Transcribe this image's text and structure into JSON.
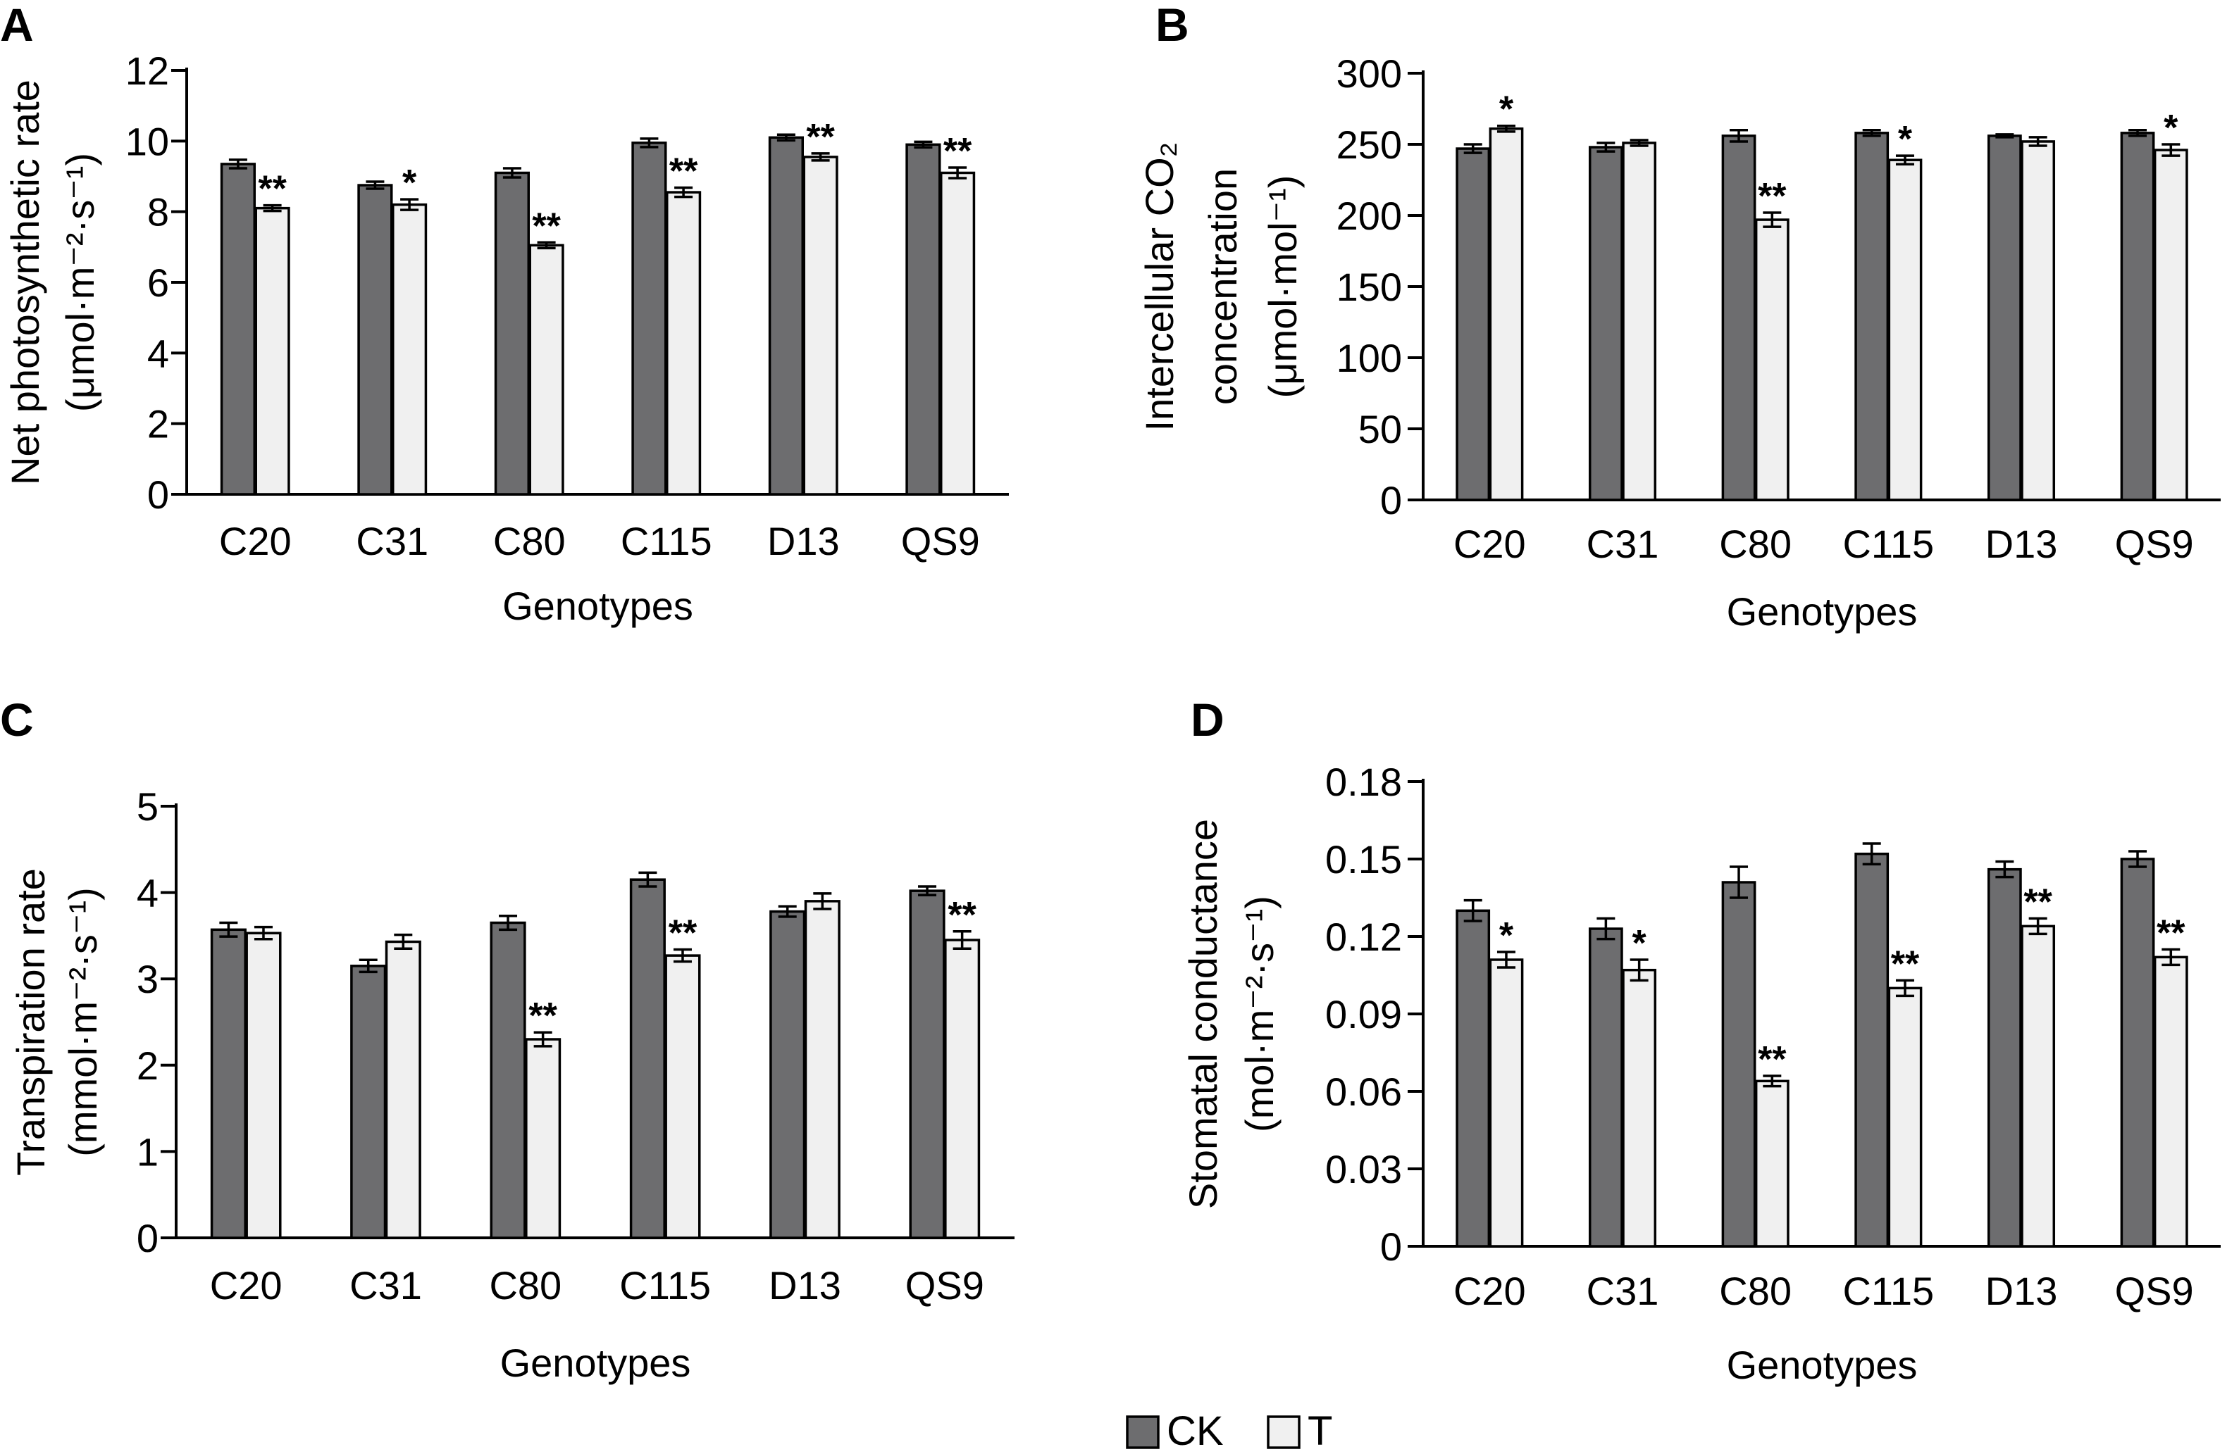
{
  "colors": {
    "ck": "#6d6d6f",
    "t": "#f0f0f0",
    "stroke": "#000000"
  },
  "legend": {
    "items": [
      {
        "label": "CK",
        "color": "#6d6d6f"
      },
      {
        "label": "T",
        "color": "#f0f0f0"
      }
    ]
  },
  "chart_data": [
    {
      "panel": "A",
      "type": "bar",
      "xlabel": "Genotypes",
      "ylabel_lines": [
        "Net photosynthetic rate",
        "(μmol·m⁻²·s⁻¹)"
      ],
      "ylim": [
        0,
        12
      ],
      "yticks": [
        0,
        2,
        4,
        6,
        8,
        10,
        12
      ],
      "ytick_labels": [
        "0",
        "2",
        "4",
        "6",
        "8",
        "10",
        "12"
      ],
      "categories": [
        "C20",
        "C31",
        "C80",
        "C115",
        "D13",
        "QS9"
      ],
      "series": [
        {
          "name": "CK",
          "values": [
            9.35,
            8.75,
            9.1,
            9.95,
            10.1,
            9.9
          ],
          "errors": [
            0.12,
            0.1,
            0.13,
            0.12,
            0.08,
            0.08
          ]
        },
        {
          "name": "T",
          "values": [
            8.1,
            8.2,
            7.05,
            8.55,
            9.55,
            9.1
          ],
          "errors": [
            0.08,
            0.15,
            0.08,
            0.13,
            0.1,
            0.15
          ]
        }
      ],
      "significance": [
        "**",
        "*",
        "**",
        "**",
        "**",
        "**"
      ]
    },
    {
      "panel": "B",
      "type": "bar",
      "xlabel": "Genotypes",
      "ylabel_lines": [
        "Intercellular CO₂",
        "concentration",
        "(μmol·mol⁻¹)"
      ],
      "ylim": [
        0,
        300
      ],
      "yticks": [
        0,
        50,
        100,
        150,
        200,
        250,
        300
      ],
      "ytick_labels": [
        "0",
        "50",
        "100",
        "150",
        "200",
        "250",
        "300"
      ],
      "categories": [
        "C20",
        "C31",
        "C80",
        "C115",
        "D13",
        "QS9"
      ],
      "series": [
        {
          "name": "CK",
          "values": [
            247,
            248,
            256,
            258,
            256,
            258
          ],
          "errors": [
            3,
            3,
            4,
            2,
            1,
            2
          ]
        },
        {
          "name": "T",
          "values": [
            261,
            251,
            197,
            239,
            252,
            246
          ],
          "errors": [
            2,
            2,
            5,
            3,
            3,
            4
          ]
        }
      ],
      "significance": [
        "*",
        "",
        "**",
        "*",
        "",
        "*"
      ]
    },
    {
      "panel": "C",
      "type": "bar",
      "xlabel": "Genotypes",
      "ylabel_lines": [
        "Transpiration rate",
        "(mmol·m⁻²·s⁻¹)"
      ],
      "ylim": [
        0,
        5
      ],
      "yticks": [
        0,
        1,
        2,
        3,
        4,
        5
      ],
      "ytick_labels": [
        "0",
        "1",
        "2",
        "3",
        "4",
        "5"
      ],
      "categories": [
        "C20",
        "C31",
        "C80",
        "C115",
        "D13",
        "QS9"
      ],
      "series": [
        {
          "name": "CK",
          "values": [
            3.57,
            3.15,
            3.65,
            4.15,
            3.78,
            4.02
          ],
          "errors": [
            0.08,
            0.07,
            0.08,
            0.08,
            0.06,
            0.05
          ]
        },
        {
          "name": "T",
          "values": [
            3.53,
            3.43,
            2.3,
            3.27,
            3.9,
            3.45
          ],
          "errors": [
            0.07,
            0.08,
            0.08,
            0.07,
            0.09,
            0.1
          ]
        }
      ],
      "significance": [
        "",
        "",
        "**",
        "**",
        "",
        "**"
      ]
    },
    {
      "panel": "D",
      "type": "bar",
      "xlabel": "Genotypes",
      "ylabel_lines": [
        "Stomatal conductance",
        "(mol·m⁻²·s⁻¹)"
      ],
      "ylim": [
        0,
        0.18
      ],
      "yticks": [
        0,
        0.03,
        0.06,
        0.09,
        0.12,
        0.15,
        0.18
      ],
      "ytick_labels": [
        "0",
        "0.03",
        "0.06",
        "0.09",
        "0.12",
        "0.15",
        "0.18"
      ],
      "categories": [
        "C20",
        "C31",
        "C80",
        "C115",
        "D13",
        "QS9"
      ],
      "series": [
        {
          "name": "CK",
          "values": [
            0.13,
            0.123,
            0.141,
            0.152,
            0.146,
            0.15
          ],
          "errors": [
            0.004,
            0.004,
            0.006,
            0.004,
            0.003,
            0.003
          ]
        },
        {
          "name": "T",
          "values": [
            0.111,
            0.107,
            0.064,
            0.1,
            0.124,
            0.112
          ],
          "errors": [
            0.003,
            0.004,
            0.002,
            0.003,
            0.003,
            0.003
          ]
        }
      ],
      "significance": [
        "*",
        "*",
        "**",
        "**",
        "**",
        "**"
      ]
    }
  ]
}
